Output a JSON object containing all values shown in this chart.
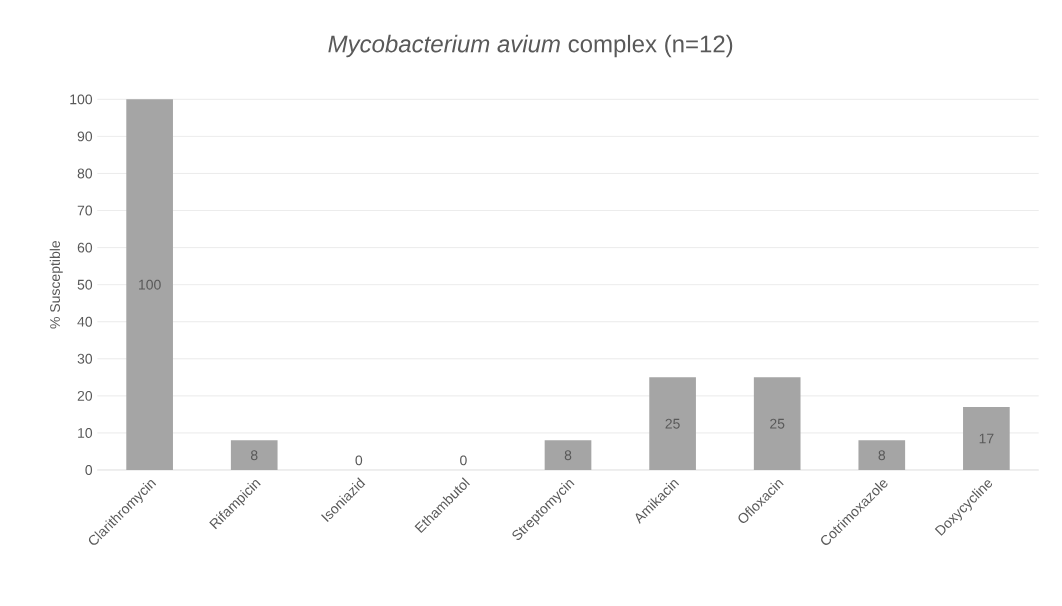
{
  "chart_data": {
    "type": "bar",
    "title": "*Mycobacterium avium* complex (n=12)",
    "ylabel": "% Susceptible",
    "categories": [
      "Clarithromycin",
      "Rifampicin",
      "Isoniazid",
      "Ethambutol",
      "Streptomycin",
      "Amikacin",
      "Ofloxacin",
      "Cotrimoxazole",
      "Doxycycline"
    ],
    "values": [
      100,
      8,
      0,
      0,
      8,
      25,
      25,
      8,
      17
    ],
    "color": "#a5a5a5",
    "ylim": [
      0,
      100
    ],
    "yticks": [
      0,
      10,
      20,
      30,
      40,
      50,
      60,
      70,
      80,
      90,
      100
    ],
    "grid": "y",
    "data_labels": true
  }
}
